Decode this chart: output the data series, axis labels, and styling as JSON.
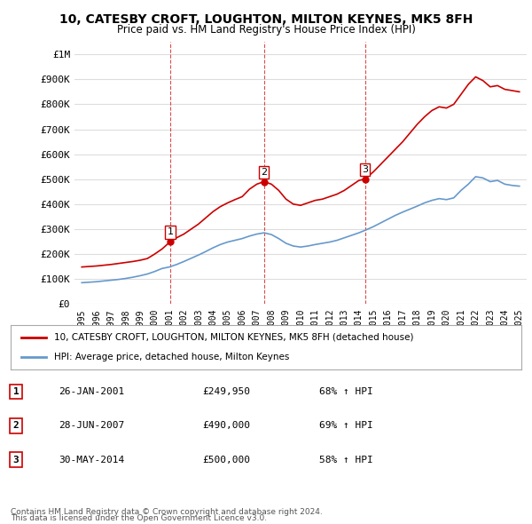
{
  "title": "10, CATESBY CROFT, LOUGHTON, MILTON KEYNES, MK5 8FH",
  "subtitle": "Price paid vs. HM Land Registry's House Price Index (HPI)",
  "legend_line1": "10, CATESBY CROFT, LOUGHTON, MILTON KEYNES, MK5 8FH (detached house)",
  "legend_line2": "HPI: Average price, detached house, Milton Keynes",
  "footer1": "Contains HM Land Registry data © Crown copyright and database right 2024.",
  "footer2": "This data is licensed under the Open Government Licence v3.0.",
  "transactions": [
    {
      "num": 1,
      "date": "26-JAN-2001",
      "price": "£249,950",
      "hpi": "68% ↑ HPI",
      "x_year": 2001.07
    },
    {
      "num": 2,
      "date": "28-JUN-2007",
      "price": "£490,000",
      "hpi": "69% ↑ HPI",
      "x_year": 2007.49
    },
    {
      "num": 3,
      "date": "30-MAY-2014",
      "price": "£500,000",
      "hpi": "58% ↑ HPI",
      "x_year": 2014.41
    }
  ],
  "red_line_color": "#cc0000",
  "blue_line_color": "#6699cc",
  "dot_color_red": "#cc0000",
  "dot_color_blue": "#6699cc",
  "background_color": "#ffffff",
  "grid_color": "#dddddd",
  "vline_color": "#cc0000",
  "ylabel": "£0",
  "ylim": [
    0,
    1050000
  ],
  "xlim": [
    1994.5,
    2025.5
  ],
  "yticks": [
    0,
    100000,
    200000,
    300000,
    400000,
    500000,
    600000,
    700000,
    800000,
    900000,
    1000000
  ],
  "ytick_labels": [
    "£0",
    "£100K",
    "£200K",
    "£300K",
    "£400K",
    "£500K",
    "£600K",
    "£700K",
    "£800K",
    "£900K",
    "£1M"
  ],
  "xticks": [
    1995,
    1996,
    1997,
    1998,
    1999,
    2000,
    2001,
    2002,
    2003,
    2004,
    2005,
    2006,
    2007,
    2008,
    2009,
    2010,
    2011,
    2012,
    2013,
    2014,
    2015,
    2016,
    2017,
    2018,
    2019,
    2020,
    2021,
    2022,
    2023,
    2024,
    2025
  ],
  "red_x": [
    1995.0,
    1995.5,
    1996.0,
    1996.5,
    1997.0,
    1997.5,
    1998.0,
    1998.5,
    1999.0,
    1999.5,
    2000.0,
    2000.5,
    2001.07,
    2001.5,
    2002.0,
    2002.5,
    2003.0,
    2003.5,
    2004.0,
    2004.5,
    2005.0,
    2005.5,
    2006.0,
    2006.5,
    2007.0,
    2007.49,
    2008.0,
    2008.5,
    2009.0,
    2009.5,
    2010.0,
    2010.5,
    2011.0,
    2011.5,
    2012.0,
    2012.5,
    2013.0,
    2013.5,
    2014.0,
    2014.41,
    2015.0,
    2015.5,
    2016.0,
    2016.5,
    2017.0,
    2017.5,
    2018.0,
    2018.5,
    2019.0,
    2019.5,
    2020.0,
    2020.5,
    2021.0,
    2021.5,
    2022.0,
    2022.5,
    2023.0,
    2023.5,
    2024.0,
    2024.5,
    2025.0
  ],
  "red_y": [
    148000,
    150000,
    152000,
    155000,
    158000,
    162000,
    166000,
    170000,
    175000,
    182000,
    200000,
    220000,
    249950,
    265000,
    280000,
    300000,
    320000,
    345000,
    370000,
    390000,
    405000,
    418000,
    430000,
    460000,
    480000,
    490000,
    480000,
    455000,
    420000,
    400000,
    395000,
    405000,
    415000,
    420000,
    430000,
    440000,
    455000,
    475000,
    495000,
    500000,
    530000,
    560000,
    590000,
    620000,
    650000,
    685000,
    720000,
    750000,
    775000,
    790000,
    785000,
    800000,
    840000,
    880000,
    910000,
    895000,
    870000,
    875000,
    860000,
    855000,
    850000
  ],
  "blue_x": [
    1995.0,
    1995.5,
    1996.0,
    1996.5,
    1997.0,
    1997.5,
    1998.0,
    1998.5,
    1999.0,
    1999.5,
    2000.0,
    2000.5,
    2001.0,
    2001.5,
    2002.0,
    2002.5,
    2003.0,
    2003.5,
    2004.0,
    2004.5,
    2005.0,
    2005.5,
    2006.0,
    2006.5,
    2007.0,
    2007.5,
    2008.0,
    2008.5,
    2009.0,
    2009.5,
    2010.0,
    2010.5,
    2011.0,
    2011.5,
    2012.0,
    2012.5,
    2013.0,
    2013.5,
    2014.0,
    2014.5,
    2015.0,
    2015.5,
    2016.0,
    2016.5,
    2017.0,
    2017.5,
    2018.0,
    2018.5,
    2019.0,
    2019.5,
    2020.0,
    2020.5,
    2021.0,
    2021.5,
    2022.0,
    2022.5,
    2023.0,
    2023.5,
    2024.0,
    2024.5,
    2025.0
  ],
  "blue_y": [
    85000,
    87000,
    89000,
    92000,
    95000,
    98000,
    102000,
    107000,
    113000,
    120000,
    130000,
    142000,
    148000,
    158000,
    170000,
    183000,
    196000,
    210000,
    225000,
    238000,
    248000,
    255000,
    262000,
    272000,
    280000,
    285000,
    278000,
    262000,
    243000,
    232000,
    228000,
    232000,
    238000,
    243000,
    248000,
    255000,
    265000,
    275000,
    285000,
    297000,
    310000,
    325000,
    340000,
    355000,
    368000,
    380000,
    392000,
    405000,
    415000,
    422000,
    418000,
    425000,
    455000,
    480000,
    510000,
    505000,
    490000,
    495000,
    480000,
    475000,
    472000
  ]
}
